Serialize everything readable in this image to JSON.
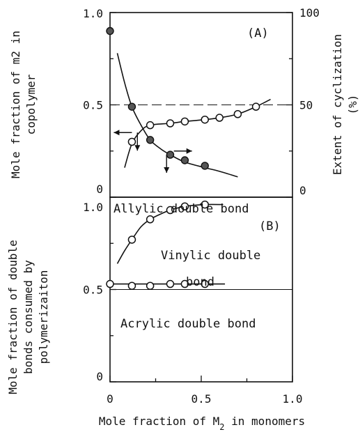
{
  "chart_data": [
    {
      "panel": "(A)",
      "type": "scatter",
      "left_axis": {
        "label_lines": [
          "Mole fraction of m2 in",
          "copolymer"
        ],
        "ticks": [
          "1.0",
          "0.5",
          "0"
        ],
        "tick_values": [
          1.0,
          0.5,
          0.0
        ],
        "ylim": [
          0,
          1.0
        ]
      },
      "right_axis": {
        "label_lines": [
          "Extent of cyclization",
          "(%)"
        ],
        "ticks": [
          "100",
          "50",
          "0"
        ],
        "tick_values": [
          100,
          50,
          0
        ],
        "ylim": [
          0,
          100
        ]
      },
      "xlim": [
        0,
        1.0
      ],
      "reference_line": {
        "y": 0.5,
        "style": "dashed"
      },
      "series": [
        {
          "axis": "left",
          "marker": "filled",
          "x": [
            0.0,
            0.12,
            0.22,
            0.33,
            0.41,
            0.52
          ],
          "y": [
            0.9,
            0.49,
            0.31,
            0.23,
            0.2,
            0.17
          ],
          "curve": {
            "x": [
              0.04,
              0.08,
              0.12,
              0.17,
              0.22,
              0.28,
              0.33,
              0.41,
              0.52,
              0.6,
              0.7
            ],
            "y": [
              0.78,
              0.62,
              0.49,
              0.39,
              0.31,
              0.26,
              0.23,
              0.19,
              0.16,
              0.14,
              0.11
            ]
          }
        },
        {
          "axis": "right",
          "marker": "open",
          "x": [
            0.12,
            0.22,
            0.33,
            0.41,
            0.52,
            0.6,
            0.7,
            0.8
          ],
          "y": [
            30,
            39,
            40,
            41,
            42,
            43,
            45,
            49
          ],
          "curve": {
            "x": [
              0.08,
              0.12,
              0.17,
              0.22,
              0.33,
              0.41,
              0.52,
              0.6,
              0.7,
              0.8,
              0.88
            ],
            "y": [
              16,
              29,
              36,
              39,
              40,
              41,
              42,
              43,
              45,
              49,
              53
            ]
          }
        }
      ],
      "arrows": [
        {
          "x": 0.12,
          "y": 0.35,
          "dir": "left"
        },
        {
          "x": 0.15,
          "y": 0.35,
          "dir": "down"
        },
        {
          "x": 0.31,
          "y": 0.23,
          "dir": "down"
        },
        {
          "x": 0.35,
          "y": 0.25,
          "dir": "right"
        }
      ]
    },
    {
      "panel": "(B)",
      "type": "scatter",
      "left_axis": {
        "label_lines": [
          "Mole fraction of double",
          "bonds consumed by",
          "polymerizaiton"
        ],
        "ticks": [
          "1.0",
          "0.5",
          "0"
        ],
        "tick_values": [
          1.0,
          0.5,
          0.0
        ],
        "ylim": [
          0,
          1.0
        ]
      },
      "xlabel_parts": {
        "before": "Mole fraction of M",
        "sub": "2",
        "after": " in monomers"
      },
      "xticks": [
        "0",
        "0.5",
        "1.0"
      ],
      "xtick_values": [
        0,
        0.5,
        1.0
      ],
      "xlim": [
        0,
        1.0
      ],
      "reference_line": {
        "y": 0.5,
        "style": "solid"
      },
      "annotations": {
        "allylic": "Allylic double bond",
        "vinylic_1": "Vinylic double",
        "vinylic_2": "bond",
        "acrylic": "Acrylic double bond"
      },
      "series": [
        {
          "marker": "open",
          "x": [
            0.12,
            0.22,
            0.33,
            0.41,
            0.52
          ],
          "y": [
            0.77,
            0.88,
            0.93,
            0.95,
            0.96
          ],
          "curve": {
            "x": [
              0.04,
              0.08,
              0.12,
              0.17,
              0.22,
              0.28,
              0.33,
              0.41,
              0.52,
              0.62
            ],
            "y": [
              0.64,
              0.71,
              0.77,
              0.84,
              0.88,
              0.91,
              0.93,
              0.95,
              0.96,
              0.96
            ]
          }
        },
        {
          "marker": "open",
          "x": [
            0.0,
            0.12,
            0.22,
            0.33,
            0.41,
            0.52
          ],
          "y": [
            0.53,
            0.52,
            0.52,
            0.53,
            0.53,
            0.53
          ],
          "curve": {
            "x": [
              0.0,
              0.63
            ],
            "y": [
              0.53,
              0.53
            ]
          }
        }
      ]
    }
  ]
}
